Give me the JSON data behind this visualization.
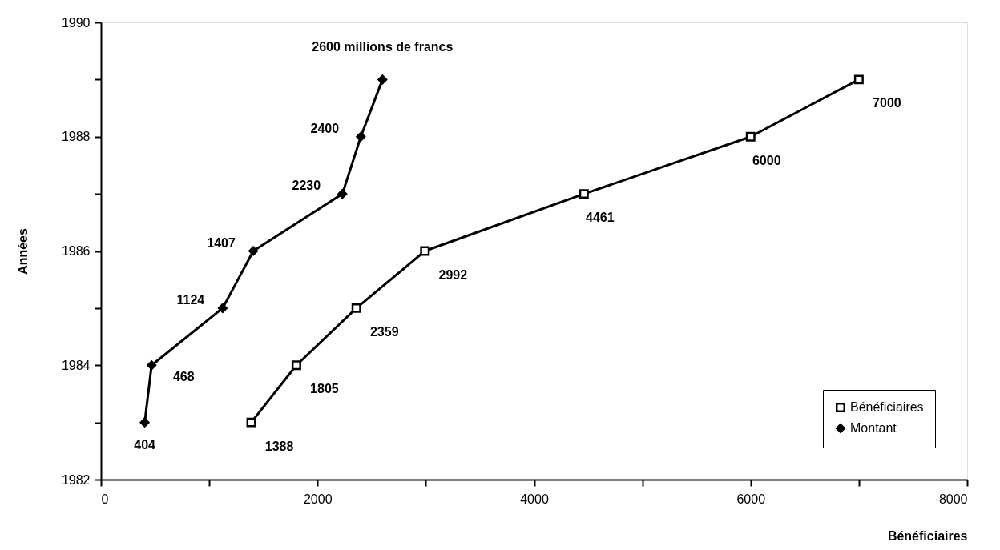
{
  "chart_data": {
    "type": "line",
    "xlabel": "Bénéficiaires",
    "ylabel": "Années",
    "xlim": [
      0,
      8000
    ],
    "xticks": [
      0,
      {
        "value": 1000,
        "label": null
      },
      2000,
      {
        "value": 3000,
        "label": null
      },
      4000,
      {
        "value": 5000,
        "label": null
      },
      6000,
      {
        "value": 7000,
        "label": null
      },
      8000
    ],
    "ylim": [
      1982,
      1990
    ],
    "yticks": [
      1982,
      {
        "value": 1983,
        "label": null
      },
      1984,
      {
        "value": 1985,
        "label": null
      },
      1986,
      {
        "value": 1987,
        "label": null
      },
      1988,
      {
        "value": 1989,
        "label": null
      },
      1990
    ],
    "grid": false,
    "legend": "bottom right",
    "line_style": "solid",
    "series": [
      {
        "name": "Bénéficiaires",
        "color": "#000000",
        "marker": "square",
        "x": [
          1388,
          1805,
          2359,
          2992,
          4461,
          6000,
          7000
        ],
        "values": [
          1983,
          1984,
          1985,
          1986,
          1987,
          1988,
          1989
        ]
      },
      {
        "name": "Montant",
        "color": "#000000",
        "marker": "diamond",
        "x": [
          404,
          468,
          1124,
          1407,
          2230,
          2400,
          2600
        ],
        "values": [
          1983,
          1984,
          1985,
          1986,
          1987,
          1988,
          1989
        ]
      }
    ],
    "annotations": [
      {
        "text": "1388",
        "x": 1388,
        "y": 1983
      },
      {
        "text": "1805",
        "x": 1805,
        "y": 1984
      },
      {
        "text": "2359",
        "x": 2359,
        "y": 1985
      },
      {
        "text": "2992",
        "x": 2992,
        "y": 1986
      },
      {
        "text": "4461",
        "x": 4461,
        "y": 1987
      },
      {
        "text": "6000",
        "x": 6000,
        "y": 1988
      },
      {
        "text": "7000",
        "x": 7000,
        "y": 1989
      },
      {
        "text": "404",
        "x": 404,
        "y": 1983
      },
      {
        "text": "468",
        "x": 468,
        "y": 1984
      },
      {
        "text": "1124",
        "x": 1124,
        "y": 1985
      },
      {
        "text": "1407",
        "x": 1407,
        "y": 1986
      },
      {
        "text": "2230",
        "x": 2230,
        "y": 1987
      },
      {
        "text": "2400",
        "x": 2400,
        "y": 1988
      },
      {
        "text": "2600 millions de francs",
        "x": 2600,
        "y": 1989
      }
    ]
  }
}
